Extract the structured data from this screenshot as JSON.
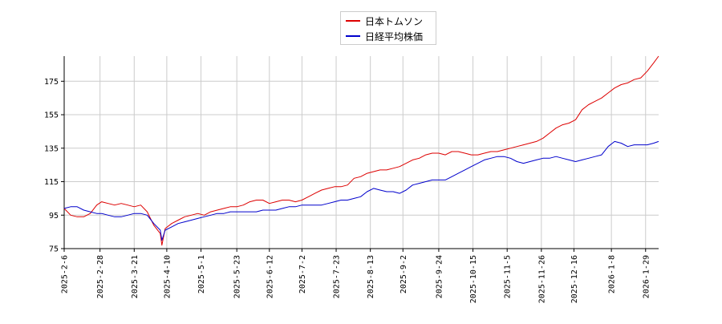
{
  "chart_data": {
    "type": "line",
    "title": "",
    "xlabel": "",
    "ylabel": "",
    "ylim": [
      75,
      190
    ],
    "yticks": [
      75,
      95,
      115,
      135,
      155,
      175
    ],
    "grid": true,
    "legend_placement": "top-center",
    "x_start": "2025-2-6",
    "x_end": "2026-2-6",
    "x_tick_labels": [
      "2025-2-6",
      "2025-2-28",
      "2025-3-21",
      "2025-4-10",
      "2025-5-1",
      "2025-5-23",
      "2025-6-12",
      "2025-7-2",
      "2025-7-23",
      "2025-8-13",
      "2025-9-2",
      "2025-9-24",
      "2025-10-15",
      "2025-11-5",
      "2025-11-26",
      "2025-12-16",
      "2026-1-8",
      "2026-1-29"
    ],
    "series": [
      {
        "name": "日本トムソン",
        "color": "#dd0000",
        "x": [
          "2025-2-6",
          "2025-2-10",
          "2025-2-14",
          "2025-2-18",
          "2025-2-22",
          "2025-2-26",
          "2025-3-1",
          "2025-3-5",
          "2025-3-9",
          "2025-3-13",
          "2025-3-17",
          "2025-3-21",
          "2025-3-25",
          "2025-3-29",
          "2025-4-2",
          "2025-4-6",
          "2025-4-7",
          "2025-4-9",
          "2025-4-13",
          "2025-4-17",
          "2025-4-21",
          "2025-4-25",
          "2025-4-29",
          "2025-5-3",
          "2025-5-7",
          "2025-5-11",
          "2025-5-15",
          "2025-5-19",
          "2025-5-23",
          "2025-5-27",
          "2025-5-31",
          "2025-6-4",
          "2025-6-8",
          "2025-6-12",
          "2025-6-16",
          "2025-6-20",
          "2025-6-24",
          "2025-6-28",
          "2025-7-2",
          "2025-7-6",
          "2025-7-10",
          "2025-7-14",
          "2025-7-18",
          "2025-7-22",
          "2025-7-26",
          "2025-7-30",
          "2025-8-3",
          "2025-8-7",
          "2025-8-11",
          "2025-8-15",
          "2025-8-19",
          "2025-8-23",
          "2025-8-27",
          "2025-8-31",
          "2025-9-4",
          "2025-9-8",
          "2025-9-12",
          "2025-9-16",
          "2025-9-20",
          "2025-9-24",
          "2025-9-28",
          "2025-10-2",
          "2025-10-6",
          "2025-10-10",
          "2025-10-14",
          "2025-10-18",
          "2025-10-22",
          "2025-10-26",
          "2025-10-30",
          "2025-11-3",
          "2025-11-7",
          "2025-11-11",
          "2025-11-15",
          "2025-11-19",
          "2025-11-23",
          "2025-11-27",
          "2025-12-1",
          "2025-12-5",
          "2025-12-9",
          "2025-12-13",
          "2025-12-17",
          "2025-12-21",
          "2025-12-25",
          "2025-12-29",
          "2026-1-2",
          "2026-1-6",
          "2026-1-10",
          "2026-1-14",
          "2026-1-18",
          "2026-1-22",
          "2026-1-26",
          "2026-1-30",
          "2026-2-3",
          "2026-2-6"
        ],
        "values": [
          99,
          95,
          94,
          94,
          96,
          101,
          103,
          102,
          101,
          102,
          101,
          100,
          101,
          97,
          89,
          84,
          77,
          87,
          90,
          92,
          94,
          95,
          96,
          95,
          97,
          98,
          99,
          100,
          100,
          101,
          103,
          104,
          104,
          102,
          103,
          104,
          104,
          103,
          104,
          106,
          108,
          110,
          111,
          112,
          112,
          113,
          117,
          118,
          120,
          121,
          122,
          122,
          123,
          124,
          126,
          128,
          129,
          131,
          132,
          132,
          131,
          133,
          133,
          132,
          131,
          131,
          132,
          133,
          133,
          134,
          135,
          136,
          137,
          138,
          139,
          141,
          144,
          147,
          149,
          150,
          152,
          158,
          161,
          163,
          165,
          168,
          171,
          173,
          174,
          176,
          177,
          181,
          186,
          190
        ]
      },
      {
        "name": "日経平均株価",
        "color": "#0000cc",
        "x": [
          "2025-2-6",
          "2025-2-10",
          "2025-2-14",
          "2025-2-18",
          "2025-2-22",
          "2025-2-26",
          "2025-3-1",
          "2025-3-5",
          "2025-3-9",
          "2025-3-13",
          "2025-3-17",
          "2025-3-21",
          "2025-3-25",
          "2025-3-29",
          "2025-4-2",
          "2025-4-6",
          "2025-4-7",
          "2025-4-9",
          "2025-4-13",
          "2025-4-17",
          "2025-4-21",
          "2025-4-25",
          "2025-4-29",
          "2025-5-3",
          "2025-5-7",
          "2025-5-11",
          "2025-5-15",
          "2025-5-19",
          "2025-5-23",
          "2025-5-27",
          "2025-5-31",
          "2025-6-4",
          "2025-6-8",
          "2025-6-12",
          "2025-6-16",
          "2025-6-20",
          "2025-6-24",
          "2025-6-28",
          "2025-7-2",
          "2025-7-6",
          "2025-7-10",
          "2025-7-14",
          "2025-7-18",
          "2025-7-22",
          "2025-7-26",
          "2025-7-30",
          "2025-8-3",
          "2025-8-7",
          "2025-8-11",
          "2025-8-15",
          "2025-8-19",
          "2025-8-23",
          "2025-8-27",
          "2025-8-31",
          "2025-9-4",
          "2025-9-8",
          "2025-9-12",
          "2025-9-16",
          "2025-9-20",
          "2025-9-24",
          "2025-9-28",
          "2025-10-2",
          "2025-10-6",
          "2025-10-10",
          "2025-10-14",
          "2025-10-18",
          "2025-10-22",
          "2025-10-26",
          "2025-10-30",
          "2025-11-3",
          "2025-11-7",
          "2025-11-11",
          "2025-11-15",
          "2025-11-19",
          "2025-11-23",
          "2025-11-27",
          "2025-12-1",
          "2025-12-5",
          "2025-12-9",
          "2025-12-13",
          "2025-12-17",
          "2025-12-21",
          "2025-12-25",
          "2025-12-29",
          "2026-1-2",
          "2026-1-6",
          "2026-1-10",
          "2026-1-14",
          "2026-1-18",
          "2026-1-22",
          "2026-1-26",
          "2026-1-30",
          "2026-2-3",
          "2026-2-6"
        ],
        "values": [
          99,
          100,
          100,
          98,
          97,
          96,
          96,
          95,
          94,
          94,
          95,
          96,
          96,
          95,
          90,
          86,
          80,
          86,
          88,
          90,
          91,
          92,
          93,
          94,
          95,
          96,
          96,
          97,
          97,
          97,
          97,
          97,
          98,
          98,
          98,
          99,
          100,
          100,
          101,
          101,
          101,
          101,
          102,
          103,
          104,
          104,
          105,
          106,
          109,
          111,
          110,
          109,
          109,
          108,
          110,
          113,
          114,
          115,
          116,
          116,
          116,
          118,
          120,
          122,
          124,
          126,
          128,
          129,
          130,
          130,
          129,
          127,
          126,
          127,
          128,
          129,
          129,
          130,
          129,
          128,
          127,
          128,
          129,
          130,
          131,
          136,
          139,
          138,
          136,
          137,
          137,
          137,
          138,
          139
        ]
      }
    ]
  }
}
